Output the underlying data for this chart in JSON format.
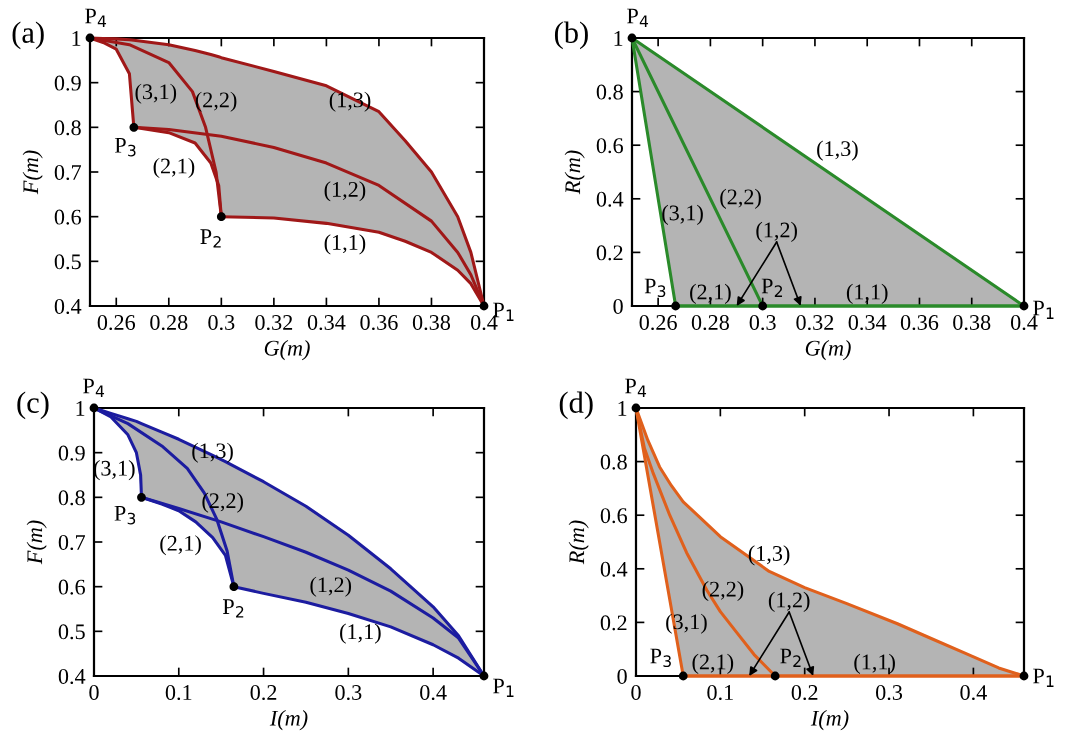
{
  "chart_data": [
    {
      "type": "line",
      "title": "(a)",
      "xlabel": "G(m)",
      "ylabel": "F(m)",
      "xlim": [
        0.25,
        0.4
      ],
      "xticks": [
        0.26,
        0.28,
        0.3,
        0.32,
        0.34,
        0.36,
        0.38,
        0.4
      ],
      "ylim": [
        0.4,
        1
      ],
      "yticks": [
        0.4,
        0.5,
        0.6,
        0.7,
        0.8,
        0.9,
        1
      ],
      "series": [
        {
          "name": "(1,3)",
          "color": "#a01818",
          "x": [
            0.25,
            0.255,
            0.26,
            0.265,
            0.2667,
            0.28,
            0.29,
            0.296,
            0.299,
            0.3,
            0.32,
            0.34,
            0.36,
            0.37,
            0.38,
            0.39,
            0.395,
            0.4
          ],
          "values": [
            1,
            0.999,
            0.998,
            0.996,
            0.995,
            0.985,
            0.972,
            0.963,
            0.958,
            0.956,
            0.925,
            0.893,
            0.835,
            0.77,
            0.7,
            0.6,
            0.52,
            0.4
          ],
          "upper": [
            1,
            0.999,
            0.998,
            0.996,
            0.995,
            0.985,
            0.972,
            0.963,
            0.958,
            0.956,
            0.925,
            0.893,
            0.835,
            0.77,
            0.7,
            0.6,
            0.52,
            0.4
          ],
          "lower": [
            1,
            0.99,
            0.975,
            0.92,
            0.8,
            0.788,
            0.765,
            0.72,
            0.67,
            0.6,
            0.597,
            0.585,
            0.565,
            0.545,
            0.52,
            0.48,
            0.45,
            0.4
          ]
        },
        {
          "name": "(1,2)",
          "color": "#a01818",
          "x": [
            0.2667,
            0.28,
            0.3,
            0.32,
            0.34,
            0.36,
            0.38,
            0.39,
            0.395,
            0.4
          ],
          "values": [
            0.8,
            0.795,
            0.78,
            0.755,
            0.72,
            0.67,
            0.59,
            0.52,
            0.47,
            0.4
          ]
        },
        {
          "name": "(1,1)",
          "color": "#a01818",
          "x": [
            0.3,
            0.32,
            0.34,
            0.36,
            0.37,
            0.38,
            0.39,
            0.395,
            0.4
          ],
          "values": [
            0.6,
            0.597,
            0.585,
            0.565,
            0.545,
            0.52,
            0.48,
            0.45,
            0.4
          ]
        },
        {
          "name": "(2,1)",
          "color": "#a01818",
          "x": [
            0.2667,
            0.28,
            0.29,
            0.296,
            0.299,
            0.3
          ],
          "values": [
            0.8,
            0.788,
            0.765,
            0.72,
            0.67,
            0.6
          ]
        },
        {
          "name": "(2,2)",
          "color": "#a01818",
          "x": [
            0.25,
            0.265,
            0.28,
            0.289,
            0.294,
            0.298,
            0.3
          ],
          "values": [
            1,
            0.985,
            0.945,
            0.88,
            0.8,
            0.7,
            0.6
          ]
        },
        {
          "name": "(3,1)",
          "color": "#a01818",
          "x": [
            0.25,
            0.255,
            0.26,
            0.265,
            0.2667
          ],
          "values": [
            1,
            0.99,
            0.975,
            0.92,
            0.8
          ]
        },
        {
          "type": "scatter",
          "marker": "circle",
          "color": "#000000",
          "x": [
            0.4,
            0.3,
            0.2667,
            0.25
          ],
          "values": [
            0.4,
            0.6,
            0.8,
            1
          ]
        }
      ],
      "annotations": [
        {
          "text": "P$_{1}$",
          "x": 0.4,
          "y": 0.4
        },
        {
          "text": "P$_{2}$",
          "x": 0.3,
          "y": 0.6
        },
        {
          "text": "P$_{3}$",
          "x": 0.2667,
          "y": 0.8
        },
        {
          "text": "P$_{4}$",
          "x": 0.25,
          "y": 1
        }
      ]
    },
    {
      "type": "line",
      "title": "(b)",
      "xlabel": "G(m)",
      "ylabel": "R(m)",
      "xlim": [
        0.25,
        0.4
      ],
      "xticks": [
        0.26,
        0.28,
        0.3,
        0.32,
        0.34,
        0.36,
        0.38,
        0.4
      ],
      "ylim": [
        0,
        1
      ],
      "yticks": [
        0,
        0.2,
        0.4,
        0.6,
        0.8,
        1
      ],
      "series": [
        {
          "name": "(1,3)",
          "color": "#2a8a2a",
          "x": [
            0.25,
            0.2667,
            0.4
          ],
          "values": [
            1,
            0.889,
            0
          ],
          "upper": [
            1,
            0.889,
            0
          ],
          "lower": [
            1,
            0,
            0
          ]
        },
        {
          "name": "(2,2)",
          "color": "#2a8a2a",
          "x": [
            0.25,
            0.3
          ],
          "values": [
            1,
            0
          ]
        },
        {
          "name": "(3,1)",
          "color": "#2a8a2a",
          "x": [
            0.25,
            0.2667
          ],
          "values": [
            1,
            0
          ]
        },
        {
          "name": "(2,1)",
          "color": "#2a8a2a",
          "x": [
            0.2667,
            0.3
          ],
          "values": [
            0,
            0
          ]
        },
        {
          "name": "(1,1)",
          "color": "#2a8a2a",
          "x": [
            0.3,
            0.4
          ],
          "values": [
            0,
            0
          ]
        },
        {
          "name": "(1,2)",
          "color": "#2a8a2a",
          "x": [
            0.2667,
            0.4
          ],
          "values": [
            0,
            0
          ]
        },
        {
          "type": "scatter",
          "marker": "circle",
          "color": "#000000",
          "x": [
            0.4,
            0.3,
            0.2667,
            0.25
          ],
          "values": [
            0,
            0,
            0,
            1
          ]
        }
      ],
      "annotations": [
        {
          "text": "P$_{1}$",
          "x": 0.4,
          "y": 0
        },
        {
          "text": "P$_{2}$",
          "x": 0.3,
          "y": 0
        },
        {
          "text": "P$_{3}$",
          "x": 0.2667,
          "y": 0
        },
        {
          "text": "P$_{4}$",
          "x": 0.25,
          "y": 1
        }
      ]
    },
    {
      "type": "line",
      "title": "(c)",
      "xlabel": "I(m)",
      "ylabel": "F(m)",
      "xlim": [
        0,
        0.46
      ],
      "xticks": [
        0,
        0.1,
        0.2,
        0.3,
        0.4
      ],
      "ylim": [
        0.4,
        1
      ],
      "yticks": [
        0.4,
        0.5,
        0.6,
        0.7,
        0.8,
        0.9,
        1
      ],
      "series": [
        {
          "name": "(1,3)",
          "color": "#1c1ca0",
          "x": [
            0,
            0.02,
            0.04,
            0.05,
            0.056,
            0.08,
            0.1,
            0.12,
            0.14,
            0.155,
            0.165,
            0.2,
            0.25,
            0.3,
            0.35,
            0.4,
            0.43,
            0.46
          ],
          "values": [
            1,
            0.988,
            0.976,
            0.97,
            0.965,
            0.946,
            0.93,
            0.912,
            0.894,
            0.88,
            0.87,
            0.835,
            0.78,
            0.715,
            0.64,
            0.555,
            0.49,
            0.4
          ],
          "upper": [
            1,
            0.988,
            0.976,
            0.97,
            0.965,
            0.946,
            0.93,
            0.912,
            0.894,
            0.88,
            0.87,
            0.835,
            0.78,
            0.715,
            0.64,
            0.555,
            0.49,
            0.4
          ],
          "lower": [
            1,
            0.98,
            0.94,
            0.9,
            0.8,
            0.785,
            0.77,
            0.745,
            0.71,
            0.67,
            0.6,
            0.585,
            0.565,
            0.54,
            0.51,
            0.47,
            0.44,
            0.4
          ]
        },
        {
          "name": "(1,2)",
          "color": "#1c1ca0",
          "x": [
            0.056,
            0.1,
            0.15,
            0.2,
            0.25,
            0.3,
            0.35,
            0.4,
            0.43,
            0.46
          ],
          "values": [
            0.8,
            0.775,
            0.745,
            0.712,
            0.677,
            0.637,
            0.59,
            0.53,
            0.485,
            0.4
          ]
        },
        {
          "name": "(1,1)",
          "color": "#1c1ca0",
          "x": [
            0.165,
            0.2,
            0.25,
            0.3,
            0.35,
            0.4,
            0.43,
            0.46
          ],
          "values": [
            0.6,
            0.585,
            0.565,
            0.54,
            0.51,
            0.47,
            0.44,
            0.4
          ]
        },
        {
          "name": "(2,1)",
          "color": "#1c1ca0",
          "x": [
            0.056,
            0.08,
            0.1,
            0.12,
            0.14,
            0.155,
            0.165
          ],
          "values": [
            0.8,
            0.785,
            0.77,
            0.745,
            0.71,
            0.67,
            0.6
          ]
        },
        {
          "name": "(2,2)",
          "color": "#1c1ca0",
          "x": [
            0,
            0.04,
            0.08,
            0.11,
            0.13,
            0.145,
            0.157,
            0.165
          ],
          "values": [
            1,
            0.965,
            0.915,
            0.865,
            0.81,
            0.75,
            0.68,
            0.6
          ]
        },
        {
          "name": "(3,1)",
          "color": "#1c1ca0",
          "x": [
            0,
            0.02,
            0.04,
            0.05,
            0.055,
            0.056
          ],
          "values": [
            1,
            0.98,
            0.94,
            0.9,
            0.85,
            0.8
          ]
        },
        {
          "type": "scatter",
          "marker": "circle",
          "color": "#000000",
          "x": [
            0.46,
            0.165,
            0.056,
            0
          ],
          "values": [
            0.4,
            0.6,
            0.8,
            1
          ]
        }
      ],
      "annotations": [
        {
          "text": "P$_{1}$",
          "x": 0.46,
          "y": 0.4
        },
        {
          "text": "P$_{2}$",
          "x": 0.165,
          "y": 0.6
        },
        {
          "text": "P$_{3}$",
          "x": 0.056,
          "y": 0.8
        },
        {
          "text": "P$_{4}$",
          "x": 0,
          "y": 1
        }
      ]
    },
    {
      "type": "line",
      "title": "(d)",
      "xlabel": "I(m)",
      "ylabel": "R(m)",
      "xlim": [
        0,
        0.46
      ],
      "xticks": [
        0,
        0.1,
        0.2,
        0.3,
        0.4
      ],
      "ylim": [
        0,
        1
      ],
      "yticks": [
        0,
        0.2,
        0.4,
        0.6,
        0.8,
        1
      ],
      "series": [
        {
          "name": "(1,3)",
          "color": "#e0601c",
          "x": [
            0,
            0.014,
            0.028,
            0.042,
            0.056,
            0.1,
            0.158,
            0.2,
            0.25,
            0.31,
            0.35,
            0.39,
            0.43,
            0.46
          ],
          "values": [
            1,
            0.88,
            0.78,
            0.71,
            0.65,
            0.52,
            0.39,
            0.33,
            0.27,
            0.195,
            0.14,
            0.085,
            0.03,
            0
          ],
          "upper": [
            1,
            0.88,
            0.78,
            0.71,
            0.65,
            0.52,
            0.39,
            0.33,
            0.27,
            0.195,
            0.14,
            0.085,
            0.03,
            0
          ],
          "lower": [
            1,
            0.75,
            0.5,
            0.25,
            0,
            0,
            0,
            0,
            0,
            0,
            0,
            0,
            0,
            0
          ]
        },
        {
          "name": "(2,2)",
          "color": "#e0601c",
          "x": [
            0,
            0.01,
            0.02,
            0.04,
            0.06,
            0.084,
            0.1,
            0.12,
            0.14,
            0.165
          ],
          "values": [
            1,
            0.85,
            0.76,
            0.6,
            0.46,
            0.32,
            0.24,
            0.16,
            0.08,
            0
          ]
        },
        {
          "name": "(3,1)",
          "color": "#e0601c",
          "x": [
            0,
            0.056
          ],
          "values": [
            1,
            0
          ]
        },
        {
          "name": "(2,1)",
          "color": "#e0601c",
          "x": [
            0.056,
            0.165
          ],
          "values": [
            0,
            0
          ]
        },
        {
          "name": "(1,1)",
          "color": "#e0601c",
          "x": [
            0.165,
            0.46
          ],
          "values": [
            0,
            0
          ]
        },
        {
          "name": "(1,2)",
          "color": "#e0601c",
          "x": [
            0.056,
            0.46
          ],
          "values": [
            0,
            0
          ]
        },
        {
          "type": "scatter",
          "marker": "circle",
          "color": "#000000",
          "x": [
            0.46,
            0.165,
            0.056,
            0
          ],
          "values": [
            0,
            0,
            0,
            1
          ]
        }
      ],
      "annotations": [
        {
          "text": "P$_{1}$",
          "x": 0.46,
          "y": 0
        },
        {
          "text": "P$_{2}$",
          "x": 0.165,
          "y": 0
        },
        {
          "text": "P$_{3}$",
          "x": 0.056,
          "y": 0
        },
        {
          "text": "P$_{4}$",
          "x": 0,
          "y": 1
        }
      ]
    }
  ]
}
